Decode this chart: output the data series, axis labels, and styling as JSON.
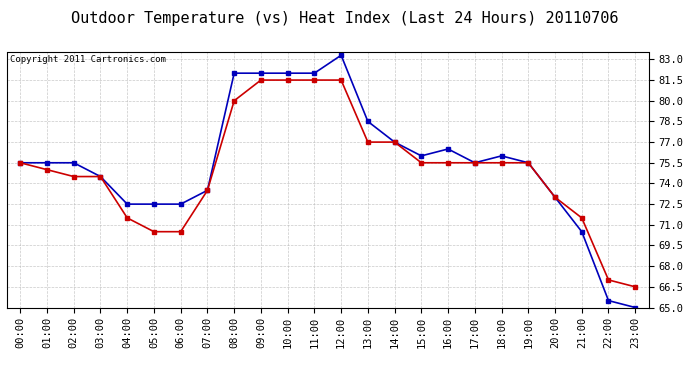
{
  "title": "Outdoor Temperature (vs) Heat Index (Last 24 Hours) 20110706",
  "copyright_text": "Copyright 2011 Cartronics.com",
  "hours": [
    "00:00",
    "01:00",
    "02:00",
    "03:00",
    "04:00",
    "05:00",
    "06:00",
    "07:00",
    "08:00",
    "09:00",
    "10:00",
    "11:00",
    "12:00",
    "13:00",
    "14:00",
    "15:00",
    "16:00",
    "17:00",
    "18:00",
    "19:00",
    "20:00",
    "21:00",
    "22:00",
    "23:00"
  ],
  "temp_blue": [
    75.5,
    75.5,
    75.5,
    74.5,
    72.5,
    72.5,
    72.5,
    73.5,
    82.0,
    82.0,
    82.0,
    82.0,
    83.3,
    78.5,
    77.0,
    76.0,
    76.5,
    75.5,
    76.0,
    75.5,
    73.0,
    70.5,
    65.5,
    65.0
  ],
  "temp_red": [
    75.5,
    75.0,
    74.5,
    74.5,
    71.5,
    70.5,
    70.5,
    73.5,
    80.0,
    81.5,
    81.5,
    81.5,
    81.5,
    77.0,
    77.0,
    75.5,
    75.5,
    75.5,
    75.5,
    75.5,
    73.0,
    71.5,
    67.0,
    66.5
  ],
  "ylim": [
    65.0,
    83.5
  ],
  "yticks": [
    65.0,
    66.5,
    68.0,
    69.5,
    71.0,
    72.5,
    74.0,
    75.5,
    77.0,
    78.5,
    80.0,
    81.5,
    83.0
  ],
  "blue_color": "#0000bb",
  "red_color": "#cc0000",
  "bg_color": "#ffffff",
  "grid_color": "#bbbbbb",
  "title_fontsize": 11,
  "axis_fontsize": 7.5,
  "copyright_fontsize": 6.5
}
